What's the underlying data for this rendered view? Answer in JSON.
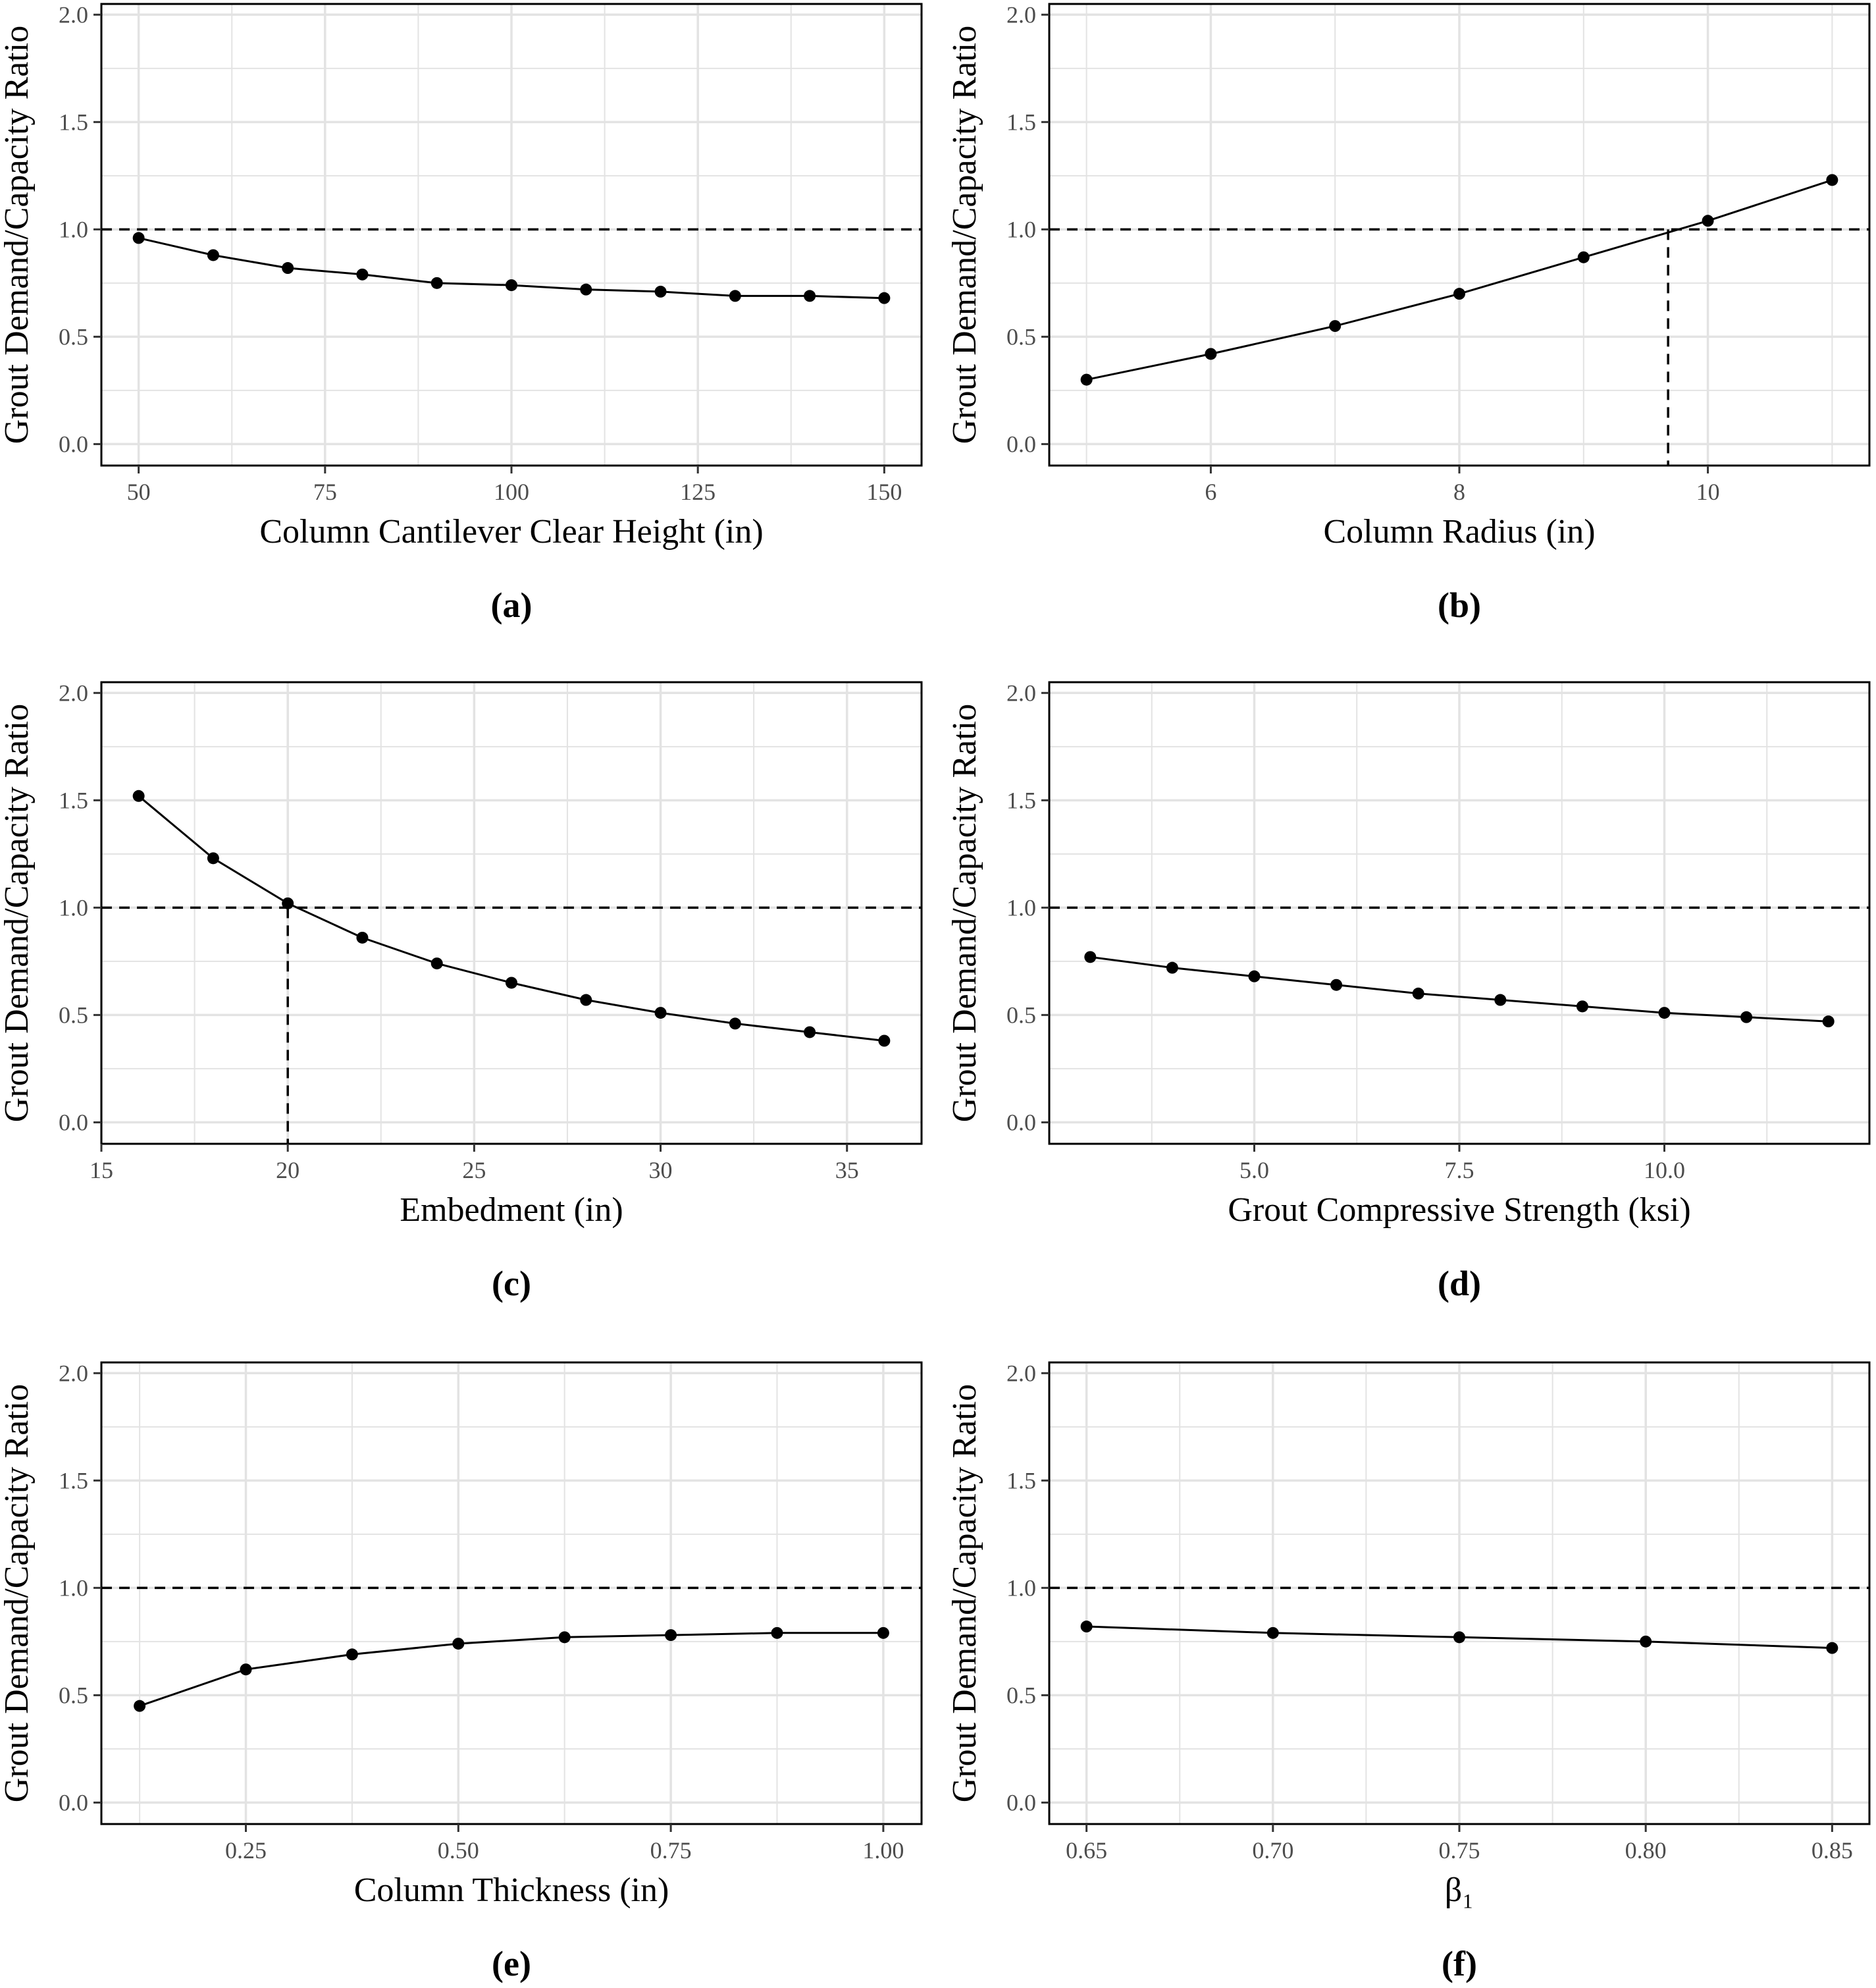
{
  "figure": {
    "colors": {
      "grid": "#e3e3e3",
      "line": "#000000",
      "point": "#000000",
      "tick_label": "#4d4d4d",
      "frame": "#000000",
      "reference_line": "#000000"
    }
  },
  "chart_data": [
    {
      "type": "line",
      "panel_label": "(a)",
      "xlabel": "Column Cantilever Clear Height (in)",
      "ylabel": "Grout Demand/Capacity Ratio",
      "xlim": [
        45,
        155
      ],
      "ylim": [
        -0.1,
        2.05
      ],
      "xticks": [
        50,
        75,
        100,
        125,
        150
      ],
      "xtick_labels": [
        "50",
        "75",
        "100",
        "125",
        "150"
      ],
      "yticks": [
        0,
        0.5,
        1,
        1.5,
        2
      ],
      "ytick_labels": [
        "0.0",
        "0.5",
        "1.0",
        "1.5",
        "2.0"
      ],
      "grid": true,
      "reference_line": {
        "y": 1.0,
        "style": "dashed"
      },
      "series": [
        {
          "x": [
            50,
            60,
            70,
            80,
            90,
            100,
            110,
            120,
            130,
            140,
            150
          ],
          "y": [
            0.96,
            0.88,
            0.82,
            0.79,
            0.75,
            0.74,
            0.72,
            0.71,
            0.69,
            0.69,
            0.68
          ]
        }
      ]
    },
    {
      "type": "line",
      "panel_label": "(b)",
      "xlabel": "Column Radius (in)",
      "ylabel": "Grout Demand/Capacity Ratio",
      "xlim": [
        4.7,
        11.3
      ],
      "ylim": [
        -0.1,
        2.05
      ],
      "xticks": [
        6,
        8,
        10
      ],
      "xtick_labels": [
        "6",
        "8",
        "10"
      ],
      "yticks": [
        0,
        0.5,
        1,
        1.5,
        2
      ],
      "ytick_labels": [
        "0.0",
        "0.5",
        "1.0",
        "1.5",
        "2.0"
      ],
      "grid": true,
      "reference_line": {
        "y": 1.0,
        "style": "dashed"
      },
      "vertical_marker": {
        "x": 9.68,
        "style": "dashed"
      },
      "series": [
        {
          "x": [
            5,
            6,
            7,
            8,
            9,
            10,
            11
          ],
          "y": [
            0.3,
            0.42,
            0.55,
            0.7,
            0.87,
            1.04,
            1.23
          ]
        }
      ]
    },
    {
      "type": "line",
      "panel_label": "(c)",
      "xlabel": "Embedment (in)",
      "ylabel": "Grout Demand/Capacity Ratio",
      "xlim": [
        15,
        37
      ],
      "ylim": [
        -0.1,
        2.05
      ],
      "xticks": [
        15,
        20,
        25,
        30,
        35
      ],
      "xtick_labels": [
        "15",
        "20",
        "25",
        "30",
        "35"
      ],
      "yticks": [
        0,
        0.5,
        1,
        1.5,
        2
      ],
      "ytick_labels": [
        "0.0",
        "0.5",
        "1.0",
        "1.5",
        "2.0"
      ],
      "grid": true,
      "reference_line": {
        "y": 1.0,
        "style": "dashed"
      },
      "vertical_marker": {
        "x": 20,
        "style": "dashed"
      },
      "series": [
        {
          "x": [
            16,
            18,
            20,
            22,
            24,
            26,
            28,
            30,
            32,
            34,
            36
          ],
          "y": [
            1.52,
            1.23,
            1.02,
            0.86,
            0.74,
            0.65,
            0.57,
            0.51,
            0.46,
            0.42,
            0.38
          ]
        }
      ]
    },
    {
      "type": "line",
      "panel_label": "(d)",
      "xlabel": "Grout Compressive Strength (ksi)",
      "ylabel": "Grout Demand/Capacity Ratio",
      "xlim": [
        2.5,
        12.5
      ],
      "ylim": [
        -0.1,
        2.05
      ],
      "xticks": [
        5,
        7.5,
        10
      ],
      "xtick_labels": [
        "5.0",
        "7.5",
        "10.0"
      ],
      "yticks": [
        0,
        0.5,
        1,
        1.5,
        2
      ],
      "ytick_labels": [
        "0.0",
        "0.5",
        "1.0",
        "1.5",
        "2.0"
      ],
      "grid": true,
      "reference_line": {
        "y": 1.0,
        "style": "dashed"
      },
      "series": [
        {
          "x": [
            3,
            4,
            5,
            6,
            7,
            8,
            9,
            10,
            11,
            12
          ],
          "y": [
            0.77,
            0.72,
            0.68,
            0.64,
            0.6,
            0.57,
            0.54,
            0.51,
            0.49,
            0.47
          ]
        }
      ]
    },
    {
      "type": "line",
      "panel_label": "(e)",
      "xlabel": "Column Thickness (in)",
      "ylabel": "Grout Demand/Capacity Ratio",
      "xlim": [
        0.08,
        1.045
      ],
      "ylim": [
        -0.1,
        2.05
      ],
      "xticks": [
        0.25,
        0.5,
        0.75,
        1
      ],
      "xtick_labels": [
        "0.25",
        "0.50",
        "0.75",
        "1.00"
      ],
      "yticks": [
        0,
        0.5,
        1,
        1.5,
        2
      ],
      "ytick_labels": [
        "0.0",
        "0.5",
        "1.0",
        "1.5",
        "2.0"
      ],
      "grid": true,
      "reference_line": {
        "y": 1.0,
        "style": "dashed"
      },
      "series": [
        {
          "x": [
            0.125,
            0.25,
            0.375,
            0.5,
            0.625,
            0.75,
            0.875,
            1
          ],
          "y": [
            0.45,
            0.62,
            0.69,
            0.74,
            0.77,
            0.78,
            0.79,
            0.79
          ]
        }
      ]
    },
    {
      "type": "line",
      "panel_label": "(f)",
      "xlabel": "β₁",
      "ylabel": "Grout Demand/Capacity Ratio",
      "xlim": [
        0.64,
        0.86
      ],
      "ylim": [
        -0.1,
        2.05
      ],
      "xticks": [
        0.65,
        0.7,
        0.75,
        0.8,
        0.85
      ],
      "xtick_labels": [
        "0.65",
        "0.70",
        "0.75",
        "0.80",
        "0.85"
      ],
      "yticks": [
        0,
        0.5,
        1,
        1.5,
        2
      ],
      "ytick_labels": [
        "0.0",
        "0.5",
        "1.0",
        "1.5",
        "2.0"
      ],
      "grid": true,
      "reference_line": {
        "y": 1.0,
        "style": "dashed"
      },
      "series": [
        {
          "x": [
            0.65,
            0.7,
            0.75,
            0.8,
            0.85
          ],
          "y": [
            0.82,
            0.79,
            0.77,
            0.75,
            0.72
          ]
        }
      ]
    }
  ]
}
